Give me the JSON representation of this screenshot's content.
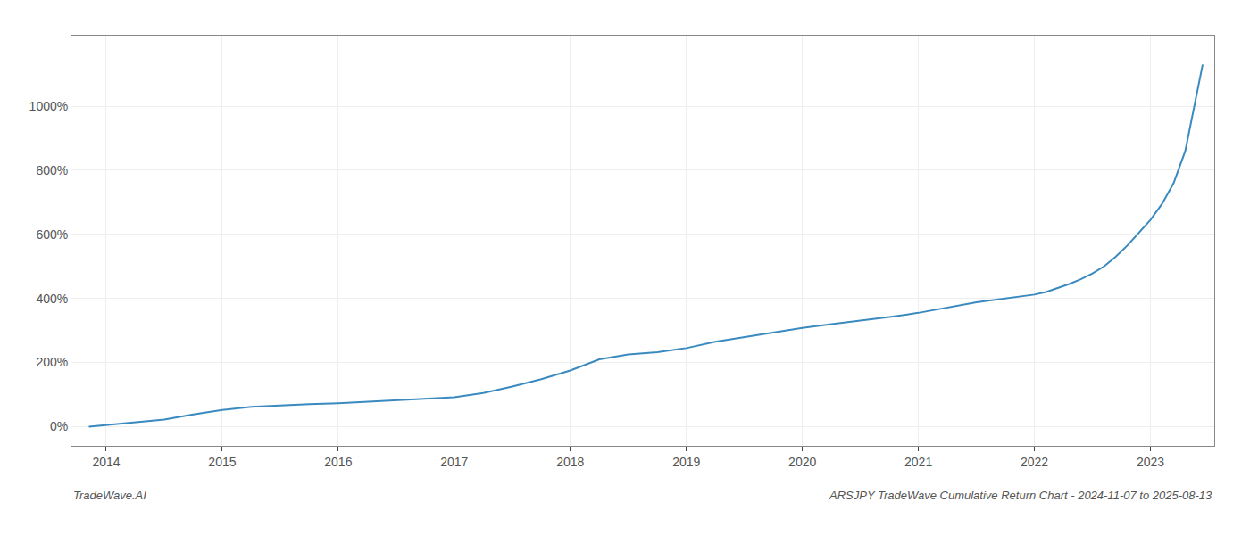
{
  "chart_data": {
    "type": "line",
    "annotations": [
      "TradeWave.AI",
      "ARSJPY TradeWave Cumulative Return Chart - 2024-11-07 to 2025-08-13"
    ],
    "x": [
      2013.85,
      2014.0,
      2014.25,
      2014.5,
      2014.75,
      2015.0,
      2015.25,
      2015.5,
      2015.75,
      2016.0,
      2016.25,
      2016.5,
      2016.75,
      2017.0,
      2017.25,
      2017.5,
      2017.75,
      2018.0,
      2018.25,
      2018.5,
      2018.75,
      2019.0,
      2019.25,
      2019.5,
      2019.75,
      2020.0,
      2020.25,
      2020.5,
      2020.75,
      2021.0,
      2021.1,
      2021.2,
      2021.3,
      2021.4,
      2021.5,
      2021.6,
      2021.7,
      2021.8,
      2021.9,
      2022.0,
      2022.1,
      2022.2,
      2022.3,
      2022.4,
      2022.5,
      2022.6,
      2022.7,
      2022.8,
      2022.9,
      2023.0,
      2023.1,
      2023.2,
      2023.3,
      2023.45
    ],
    "values": [
      0,
      5,
      12,
      22,
      38,
      52,
      62,
      67,
      70,
      73,
      78,
      83,
      87,
      92,
      105,
      125,
      148,
      175,
      210,
      225,
      232,
      245,
      265,
      280,
      295,
      308,
      320,
      330,
      342,
      355,
      362,
      368,
      375,
      382,
      388,
      393,
      398,
      403,
      408,
      412,
      420,
      432,
      445,
      460,
      478,
      500,
      530,
      565,
      605,
      645,
      695,
      760,
      860,
      1130
    ],
    "color": "#3a8abf",
    "xlim": [
      2013.7,
      2023.55
    ],
    "xticks": [
      2014,
      2015,
      2016,
      2017,
      2018,
      2019,
      2020,
      2021,
      2022,
      2023
    ],
    "ylim": [
      -60,
      1220
    ],
    "yticks": [
      {
        "value": 0,
        "label": "0%"
      },
      {
        "value": 200,
        "label": "200%"
      },
      {
        "value": 400,
        "label": "400%"
      },
      {
        "value": 600,
        "label": "600%"
      },
      {
        "value": 800,
        "label": "800%"
      },
      {
        "value": 1000,
        "label": "1000%"
      }
    ],
    "grid": true
  }
}
